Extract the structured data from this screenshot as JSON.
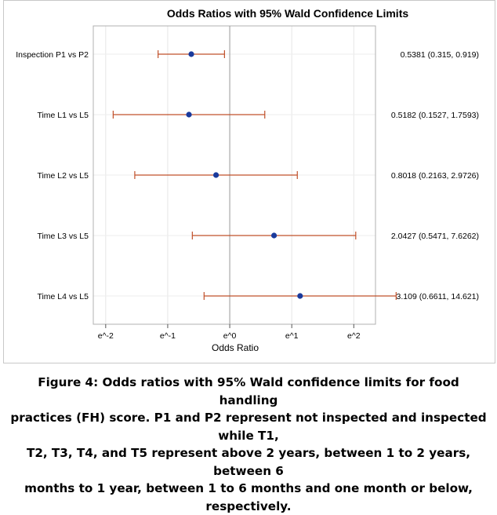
{
  "chart_data": {
    "type": "forest",
    "title": "Odds Ratios with 95% Wald Confidence Limits",
    "xlabel": "Odds Ratio",
    "x_scale": "log",
    "xlim": [
      -2.2,
      2.35
    ],
    "x_ticks": [
      {
        "value": -2,
        "label": "e^-2"
      },
      {
        "value": -1,
        "label": "e^-1"
      },
      {
        "value": 0,
        "label": "e^0"
      },
      {
        "value": 1,
        "label": "e^1"
      },
      {
        "value": 2,
        "label": "e^2"
      }
    ],
    "reference_line": 1,
    "grid": true,
    "point_color": "#1a3a9c",
    "interval_color": "#c0502a",
    "rows": [
      {
        "label": "Inspection P1 vs P2",
        "estimate": 0.5381,
        "lower": 0.315,
        "upper": 0.919,
        "value_text": "0.5381 (0.315, 0.919)"
      },
      {
        "label": "Time L1 vs L5",
        "estimate": 0.5182,
        "lower": 0.1527,
        "upper": 1.7593,
        "value_text": "0.5182 (0.1527, 1.7593)"
      },
      {
        "label": "Time L2 vs L5",
        "estimate": 0.8018,
        "lower": 0.2163,
        "upper": 2.9726,
        "value_text": "0.8018 (0.2163, 2.9726)"
      },
      {
        "label": "Time L3 vs L5",
        "estimate": 2.0427,
        "lower": 0.5471,
        "upper": 7.6262,
        "value_text": "2.0427 (0.5471, 7.6262)"
      },
      {
        "label": "Time L4 vs L5",
        "estimate": 3.109,
        "lower": 0.6611,
        "upper": 14.621,
        "value_text": "3.109 (0.6611, 14.621)"
      }
    ]
  },
  "caption": {
    "line1": "Figure 4: Odds ratios with 95% Wald confidence limits for food handling",
    "line2": "practices (FH) score. P1 and P2 represent not inspected and inspected while T1,",
    "line3": "T2, T3, T4, and T5 represent above 2 years, between 1 to 2 years, between 6",
    "line4": "months to 1 year, between 1 to 6 months and one month or below,",
    "line5": "respectively."
  }
}
